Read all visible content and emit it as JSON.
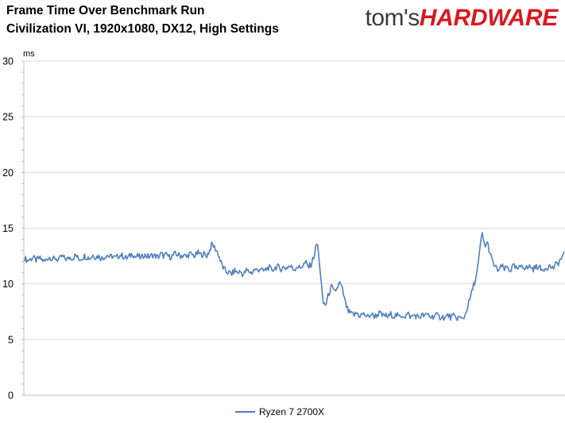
{
  "header": {
    "title_line1": "Frame Time Over Benchmark Run",
    "title_line2": "Civilization VI, 1920x1080, DX12, High Settings",
    "logo_part1": "tom's",
    "logo_part2": "HARDWARE"
  },
  "colors": {
    "series": "#4f7fbf",
    "grid": "#d9d9d9",
    "axis": "#bfbfbf",
    "logo_red": "#d8191f",
    "logo_dark": "#3a3a3a"
  },
  "chart_data": {
    "type": "line",
    "title": "Frame Time Over Benchmark Run",
    "subtitle": "Civilization VI, 1920x1080, DX12, High Settings",
    "xlabel": "",
    "ylabel": "ms",
    "ylim": [
      0,
      30
    ],
    "yticks": [
      0,
      5,
      10,
      15,
      20,
      25,
      30
    ],
    "grid": true,
    "legend_position": "bottom",
    "series": [
      {
        "name": "Ryzen 7 2700X",
        "values": [
          12.3,
          12.1,
          12.2,
          12.4,
          12.1,
          12.3,
          12.2,
          12.0,
          12.3,
          12.4,
          12.2,
          12.3,
          12.1,
          12.5,
          12.3,
          12.2,
          12.4,
          12.3,
          12.6,
          12.2,
          12.3,
          12.5,
          12.4,
          12.3,
          12.6,
          12.4,
          12.5,
          12.3,
          12.4,
          12.6,
          12.4,
          12.5,
          12.3,
          12.5,
          12.6,
          12.4,
          12.3,
          12.5,
          12.7,
          12.4,
          12.5,
          12.3,
          12.6,
          12.5,
          12.4,
          12.6,
          12.5,
          12.4,
          12.7,
          12.5,
          12.6,
          12.4,
          12.5,
          12.7,
          12.6,
          12.5,
          12.6,
          12.4,
          12.7,
          12.6,
          12.5,
          12.8,
          12.6,
          12.7,
          12.5,
          12.9,
          13.6,
          13.2,
          12.8,
          12.0,
          11.4,
          11.1,
          11.0,
          10.9,
          11.2,
          11.0,
          11.1,
          10.8,
          11.2,
          11.1,
          11.0,
          11.3,
          11.2,
          11.4,
          11.1,
          11.3,
          11.5,
          11.2,
          11.4,
          11.6,
          11.3,
          11.5,
          11.4,
          11.6,
          11.5,
          11.3,
          11.6,
          11.4,
          11.7,
          11.9,
          11.5,
          11.8,
          12.6,
          13.8,
          11.5,
          8.3,
          8.1,
          9.0,
          9.8,
          9.2,
          9.6,
          10.1,
          9.4,
          8.2,
          7.5,
          7.3,
          7.2,
          7.4,
          7.1,
          7.3,
          7.2,
          7.0,
          7.3,
          7.1,
          7.2,
          7.4,
          7.1,
          7.2,
          7.0,
          7.3,
          7.1,
          7.2,
          7.0,
          7.2,
          7.1,
          7.3,
          7.0,
          7.2,
          7.1,
          7.0,
          7.2,
          7.1,
          7.3,
          7.0,
          7.1,
          7.2,
          7.0,
          7.1,
          6.9,
          7.2,
          7.0,
          7.1,
          6.9,
          7.0,
          6.8,
          7.1,
          8.0,
          8.8,
          9.8,
          10.6,
          12.3,
          14.6,
          13.4,
          13.7,
          12.6,
          11.8,
          11.4,
          11.2,
          11.6,
          11.3,
          11.5,
          11.2,
          11.6,
          11.4,
          11.3,
          11.7,
          11.5,
          11.4,
          11.6,
          11.3,
          11.5,
          11.6,
          11.2,
          11.4,
          11.5,
          11.6,
          11.4,
          11.7,
          11.9,
          12.3,
          12.6
        ]
      }
    ]
  }
}
